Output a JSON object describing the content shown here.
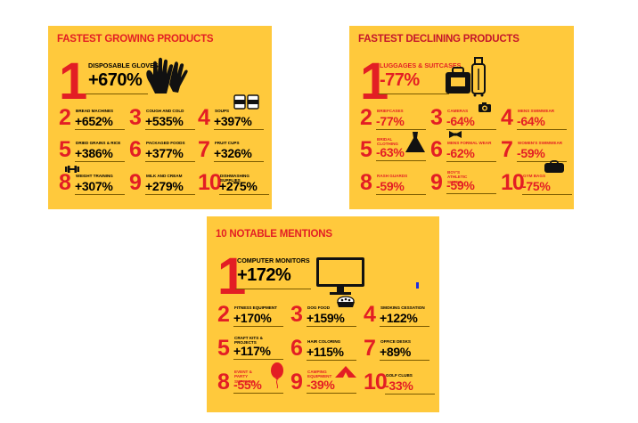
{
  "panels": [
    {
      "title": "FASTEST GROWING PRODUCTS",
      "hero": {
        "rank": "1",
        "name": "DISPOSABLE GLOVES",
        "value": "+670%"
      },
      "items": [
        {
          "rank": "2",
          "name": "BREAD MACHINES",
          "value": "+652%"
        },
        {
          "rank": "3",
          "name": "COUGH AND COLD",
          "value": "+535%"
        },
        {
          "rank": "4",
          "name": "SOUPS",
          "value": "+397%"
        },
        {
          "rank": "5",
          "name": "DRIED GRAINS & RICE",
          "value": "+386%"
        },
        {
          "rank": "6",
          "name": "PACKAGED FOODS",
          "value": "+377%"
        },
        {
          "rank": "7",
          "name": "FRUIT CUPS",
          "value": "+326%"
        },
        {
          "rank": "8",
          "name": "WEIGHT TRAINING",
          "value": "+307%"
        },
        {
          "rank": "9",
          "name": "MILK AND CREAM",
          "value": "+279%"
        },
        {
          "rank": "10",
          "name": "DISHWASHING SUPPLIES",
          "value": "+275%"
        }
      ]
    },
    {
      "title": "FASTEST DECLINING PRODUCTS",
      "hero": {
        "rank": "1",
        "name": "LUGGAGES & SUITCASES",
        "value": "-77%"
      },
      "items": [
        {
          "rank": "2",
          "name": "BRIEFCASES",
          "value": "-77%"
        },
        {
          "rank": "3",
          "name": "CAMERAS",
          "value": "-64%"
        },
        {
          "rank": "4",
          "name": "MENS SWIMWEAR",
          "value": "-64%"
        },
        {
          "rank": "5",
          "name": "BRIDAL CLOTHING",
          "value": "-63%"
        },
        {
          "rank": "6",
          "name": "MENS FORMAL WEAR",
          "value": "-62%"
        },
        {
          "rank": "7",
          "name": "WOMEN'S SWIMWEAR",
          "value": "-59%"
        },
        {
          "rank": "8",
          "name": "RASH GUARDS",
          "value": "-59%"
        },
        {
          "rank": "9",
          "name": "BOY'S ATHLETIC SHOES",
          "value": "-59%"
        },
        {
          "rank": "10",
          "name": "GYM BAGS",
          "value": "-75%"
        }
      ]
    },
    {
      "title": "10 NOTABLE MENTIONS",
      "hero": {
        "rank": "1",
        "name": "COMPUTER MONITORS",
        "value": "+172%"
      },
      "items": [
        {
          "rank": "2",
          "name": "FITNESS EQUIPMENT",
          "value": "+170%"
        },
        {
          "rank": "3",
          "name": "DOG FOOD",
          "value": "+159%"
        },
        {
          "rank": "4",
          "name": "SMOKING CESSATION",
          "value": "+122%"
        },
        {
          "rank": "5",
          "name": "CRAFT KITS & PROJECTS",
          "value": "+117%"
        },
        {
          "rank": "6",
          "name": "HAIR COLORING",
          "value": "+115%"
        },
        {
          "rank": "7",
          "name": "OFFICE DESKS",
          "value": "+89%"
        },
        {
          "rank": "8",
          "name": "EVENT & PARTY SUPPLIES",
          "value": "-55%"
        },
        {
          "rank": "9",
          "name": "CAMPING EQUIPMENT",
          "value": "-39%"
        },
        {
          "rank": "10",
          "name": "GOLF CLUBS",
          "value": "-33%"
        }
      ]
    }
  ],
  "icons": [
    "gloves-icon",
    "soup-cans-icon",
    "dumbbell-icon",
    "luggage-icon",
    "camera-icon",
    "bridal-dress-icon",
    "bow-tie-icon",
    "gym-bag-icon",
    "monitor-icon",
    "dog-food-bowl-icon",
    "balloon-icon",
    "tent-icon"
  ],
  "colors": {
    "panel_bg": "#ffc93c",
    "accent_red": "#e31e24",
    "text": "#000000"
  }
}
